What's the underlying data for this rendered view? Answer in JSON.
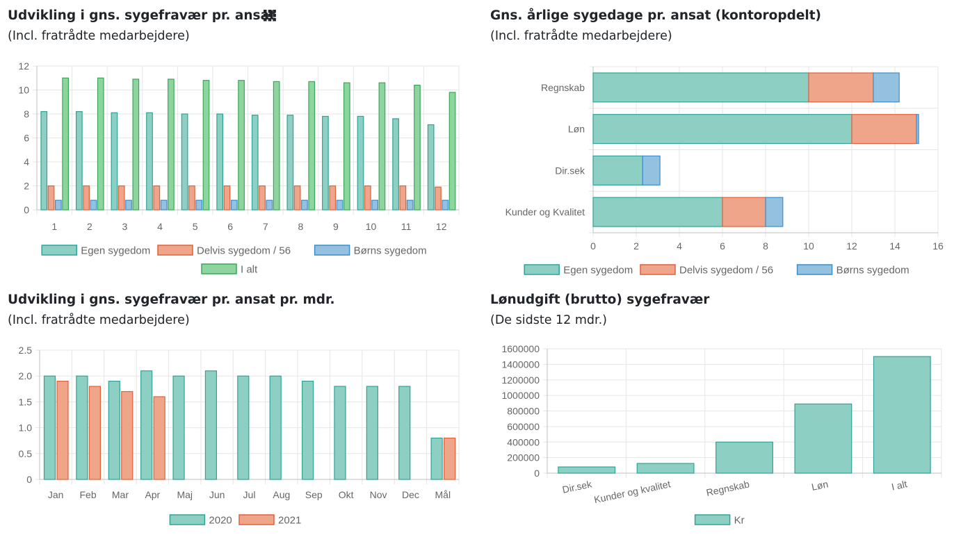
{
  "panels": [
    {
      "title": "Udvikling i gns. sygefravær pr. ansat",
      "subtitle": "(Incl. fratrådte medarbejdere)"
    },
    {
      "title": "Gns. årlige sygedage pr. ansat (kontoropdelt)",
      "subtitle": "(Incl. fratrådte medarbejdere)"
    },
    {
      "title": "Udvikling i gns. sygefravær pr. ansat pr. mdr.",
      "subtitle": "(Incl. fratrådte medarbejdere)"
    },
    {
      "title": "Lønudgift (brutto) sygefravær",
      "subtitle": "(De sidste 12 mdr.)"
    }
  ],
  "menu_icon": "grid-menu-icon",
  "colors": {
    "teal_fill": "#8ecfc4",
    "teal_stroke": "#2ea396",
    "orange_fill": "#eea58a",
    "orange_stroke": "#e0603a",
    "blue_fill": "#94c1e0",
    "blue_stroke": "#3c8dc9",
    "green_fill": "#8ed49e",
    "green_stroke": "#3aa858"
  },
  "chart_data": [
    {
      "type": "bar",
      "categories": [
        "1",
        "2",
        "3",
        "4",
        "5",
        "6",
        "7",
        "8",
        "9",
        "10",
        "11",
        "12"
      ],
      "ylim": [
        0,
        12
      ],
      "yticks": [
        0,
        2,
        4,
        6,
        8,
        10,
        12
      ],
      "grid": true,
      "legend_position": "bottom",
      "series": [
        {
          "name": "Egen sygedom",
          "color": "teal",
          "values": [
            8.2,
            8.2,
            8.1,
            8.1,
            8.0,
            8.0,
            7.9,
            7.9,
            7.8,
            7.8,
            7.6,
            7.1
          ]
        },
        {
          "name": "Delvis sygedom / 56",
          "color": "orange",
          "values": [
            2.0,
            2.0,
            2.0,
            2.0,
            2.0,
            2.0,
            2.0,
            2.0,
            2.0,
            2.0,
            2.0,
            1.9
          ]
        },
        {
          "name": "Børns sygedom",
          "color": "blue",
          "values": [
            0.8,
            0.8,
            0.8,
            0.8,
            0.8,
            0.8,
            0.8,
            0.8,
            0.8,
            0.8,
            0.8,
            0.8
          ]
        },
        {
          "name": "I alt",
          "color": "green",
          "values": [
            11.0,
            11.0,
            10.9,
            10.9,
            10.8,
            10.8,
            10.7,
            10.7,
            10.6,
            10.6,
            10.4,
            9.8
          ]
        }
      ]
    },
    {
      "type": "bar",
      "orientation": "horizontal",
      "stacked": true,
      "categories": [
        "Regnskab",
        "Løn",
        "Dir.sek",
        "Kunder og Kvalitet"
      ],
      "xlim": [
        0,
        16
      ],
      "xticks": [
        0,
        2,
        4,
        6,
        8,
        10,
        12,
        14,
        16
      ],
      "grid": true,
      "legend_position": "bottom",
      "series": [
        {
          "name": "Egen sygedom",
          "color": "teal",
          "values": [
            10.0,
            12.0,
            2.3,
            6.0
          ]
        },
        {
          "name": "Delvis sygedom / 56",
          "color": "orange",
          "values": [
            3.0,
            3.0,
            0,
            2.0
          ]
        },
        {
          "name": "Børns sygedom",
          "color": "blue",
          "values": [
            1.2,
            0.1,
            0.8,
            0.8
          ]
        }
      ]
    },
    {
      "type": "bar",
      "categories": [
        "Jan",
        "Feb",
        "Mar",
        "Apr",
        "Maj",
        "Jun",
        "Jul",
        "Aug",
        "Sep",
        "Okt",
        "Nov",
        "Dec",
        "Mål"
      ],
      "ylim": [
        0,
        2.5
      ],
      "yticks": [
        "0",
        "0.5",
        "1.0",
        "1.5",
        "2.0",
        "2.5"
      ],
      "grid": true,
      "legend_position": "bottom",
      "series": [
        {
          "name": "2020",
          "color": "teal",
          "values": [
            2.0,
            2.0,
            1.9,
            2.1,
            2.0,
            2.1,
            2.0,
            2.0,
            1.9,
            1.8,
            1.8,
            1.8,
            0.8
          ]
        },
        {
          "name": "2021",
          "color": "orange",
          "values": [
            1.9,
            1.8,
            1.7,
            1.6,
            null,
            null,
            null,
            null,
            null,
            null,
            null,
            null,
            0.8
          ]
        }
      ]
    },
    {
      "type": "bar",
      "categories": [
        "Dir.sek",
        "Kunder og kvalitet",
        "Regnskab",
        "Løn",
        "I alt"
      ],
      "ylim": [
        0,
        1600000
      ],
      "yticks": [
        0,
        200000,
        400000,
        600000,
        800000,
        1000000,
        1200000,
        1400000,
        1600000
      ],
      "grid": true,
      "legend_position": "bottom",
      "series": [
        {
          "name": "Kr",
          "color": "teal",
          "values": [
            80000,
            125000,
            400000,
            890000,
            1500000
          ]
        }
      ]
    }
  ]
}
